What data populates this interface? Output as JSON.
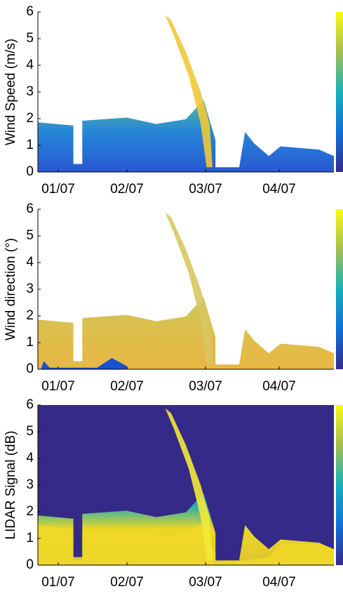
{
  "chart_data": [
    {
      "type": "heatmap",
      "ylabel": "Wind Speed (m/s)",
      "ylim": [
        0,
        6
      ],
      "yticks": [
        0,
        1,
        2,
        3,
        4,
        5,
        6
      ],
      "x_tick_labels": [
        "01/07",
        "02/07",
        "03/07",
        "04/07"
      ],
      "colormap": "parula"
    },
    {
      "type": "heatmap",
      "ylabel": "Wind direction (°)",
      "ylim": [
        0,
        6
      ],
      "yticks": [
        0,
        1,
        2,
        3,
        4,
        5,
        6
      ],
      "x_tick_labels": [
        "01/07",
        "02/07",
        "03/07",
        "04/07"
      ],
      "colormap": "parula"
    },
    {
      "type": "heatmap",
      "ylabel": "LIDAR Signal (dB)",
      "ylim": [
        0,
        6
      ],
      "yticks": [
        0,
        1,
        2,
        3,
        4,
        5,
        6
      ],
      "x_tick_labels": [
        "01/07",
        "02/07",
        "03/07",
        "04/07"
      ],
      "colormap": "parula"
    }
  ]
}
